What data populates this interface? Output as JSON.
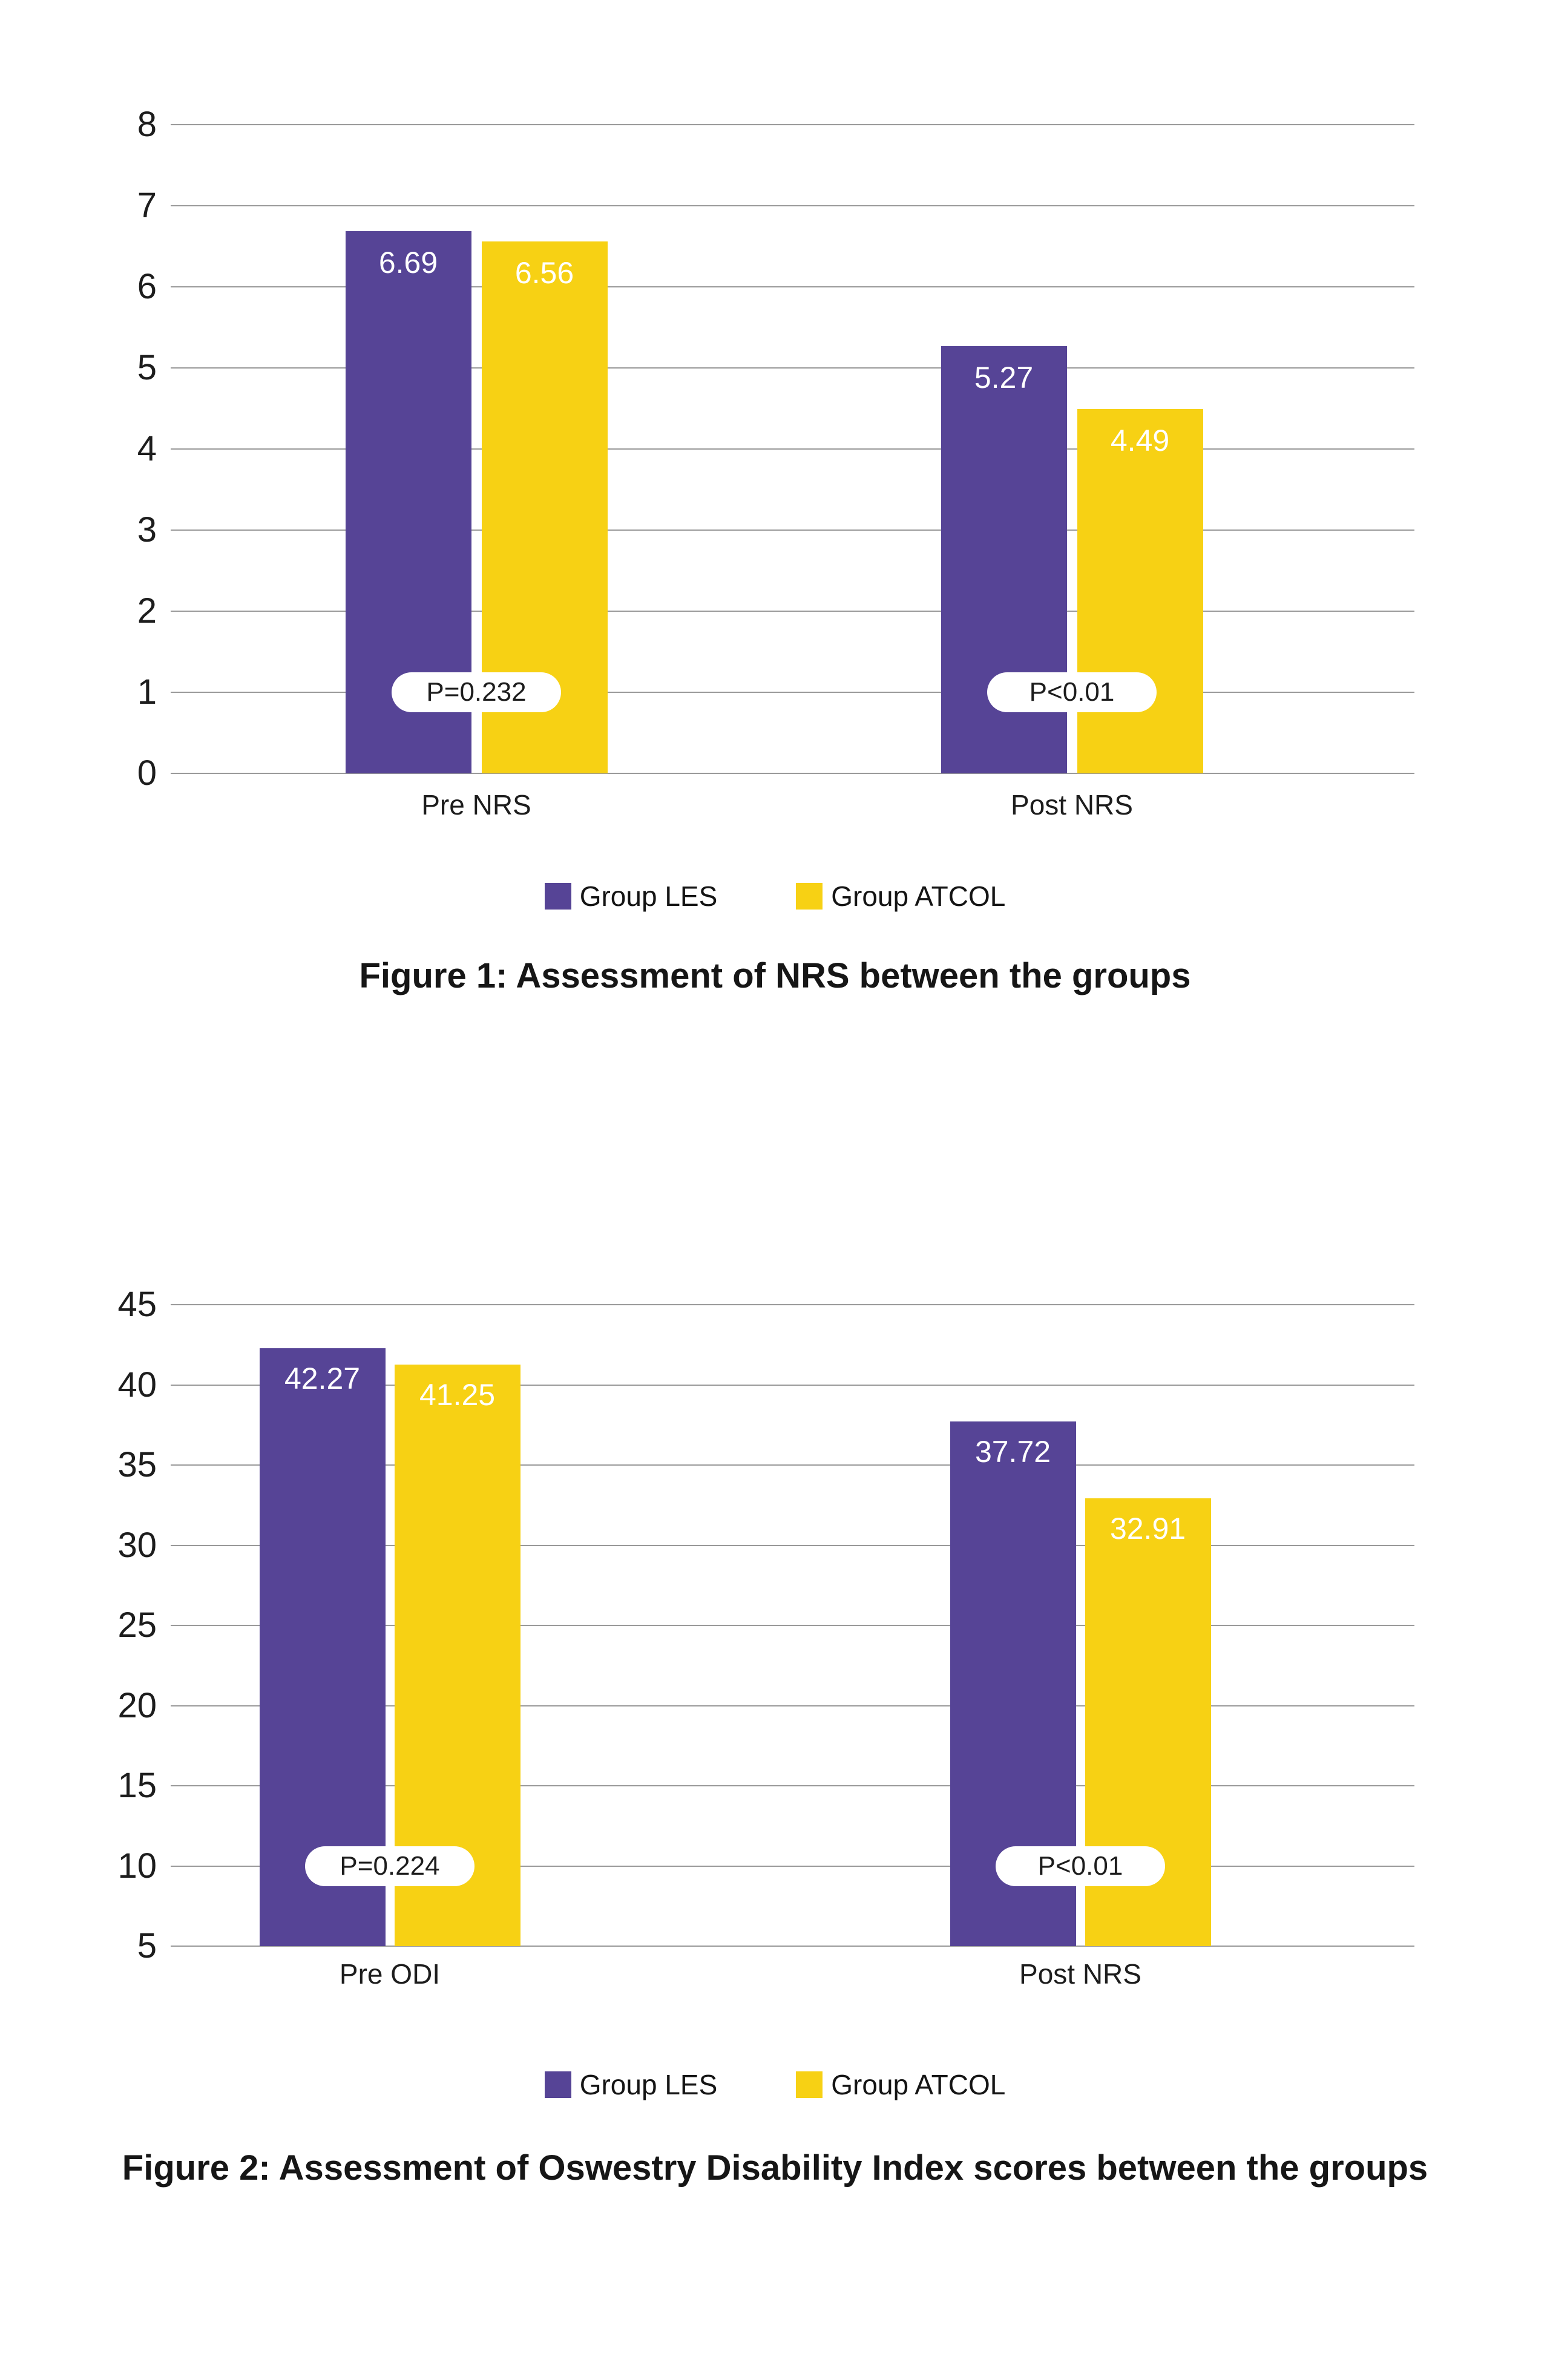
{
  "styles": {
    "grid_color": "#9a9a9a",
    "text_color": "#1d1d1d",
    "value_label_color": "#ffffff",
    "pill_bg": "#ffffff",
    "accent_purple": "#564496",
    "accent_yellow": "#F7D114"
  },
  "chart_data": [
    {
      "type": "bar",
      "caption": "Figure 1: Assessment of NRS between the groups",
      "categories": [
        "Pre NRS",
        "Post NRS"
      ],
      "series": [
        {
          "name": "Group LES",
          "color": "#564496",
          "values": [
            6.69,
            5.27
          ]
        },
        {
          "name": "Group ATCOL",
          "color": "#F7D114",
          "values": [
            6.56,
            4.49
          ]
        }
      ],
      "annotations": [
        {
          "category": "Pre NRS",
          "label": "P=0.232",
          "at_value": 1
        },
        {
          "category": "Post NRS",
          "label": "P<0.01",
          "at_value": 1
        }
      ],
      "xlabel": "",
      "ylabel": "",
      "ylim": [
        0,
        8
      ],
      "ytick_step": 1,
      "grid": true,
      "legend_position": "bottom",
      "value_label_decimals": 2
    },
    {
      "type": "bar",
      "caption": "Figure 2: Assessment of Oswestry Disability Index scores between the groups",
      "categories": [
        "Pre ODI",
        "Post NRS"
      ],
      "series": [
        {
          "name": "Group LES",
          "color": "#564496",
          "values": [
            42.27,
            37.72
          ]
        },
        {
          "name": "Group ATCOL",
          "color": "#F7D114",
          "values": [
            41.25,
            32.91
          ]
        }
      ],
      "annotations": [
        {
          "category": "Pre ODI",
          "label": "P=0.224",
          "at_value": 10
        },
        {
          "category": "Post NRS",
          "label": "P<0.01",
          "at_value": 10
        }
      ],
      "xlabel": "",
      "ylabel": "",
      "ylim": [
        5,
        45
      ],
      "ytick_step": 5,
      "grid": true,
      "legend_position": "bottom",
      "value_label_decimals": 2
    }
  ]
}
